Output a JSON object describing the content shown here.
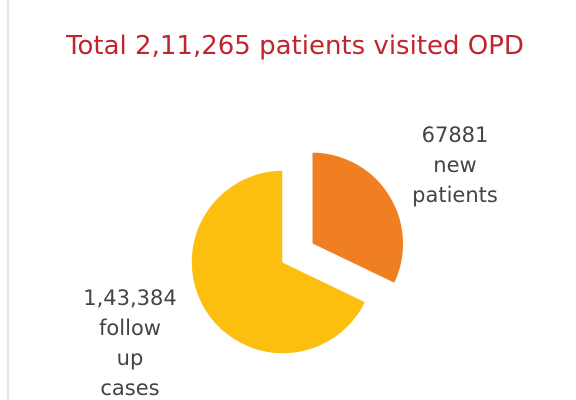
{
  "chart_data": {
    "type": "pie",
    "title": "Total 2,11,265 patients visited OPD",
    "categories": [
      "new patients",
      "follow up cases"
    ],
    "values": [
      67881,
      143384
    ],
    "value_labels": [
      "67881",
      "1,43,384"
    ],
    "colors": [
      "#f07f22",
      "#fcbf10"
    ],
    "exploded": [
      true,
      false
    ]
  }
}
